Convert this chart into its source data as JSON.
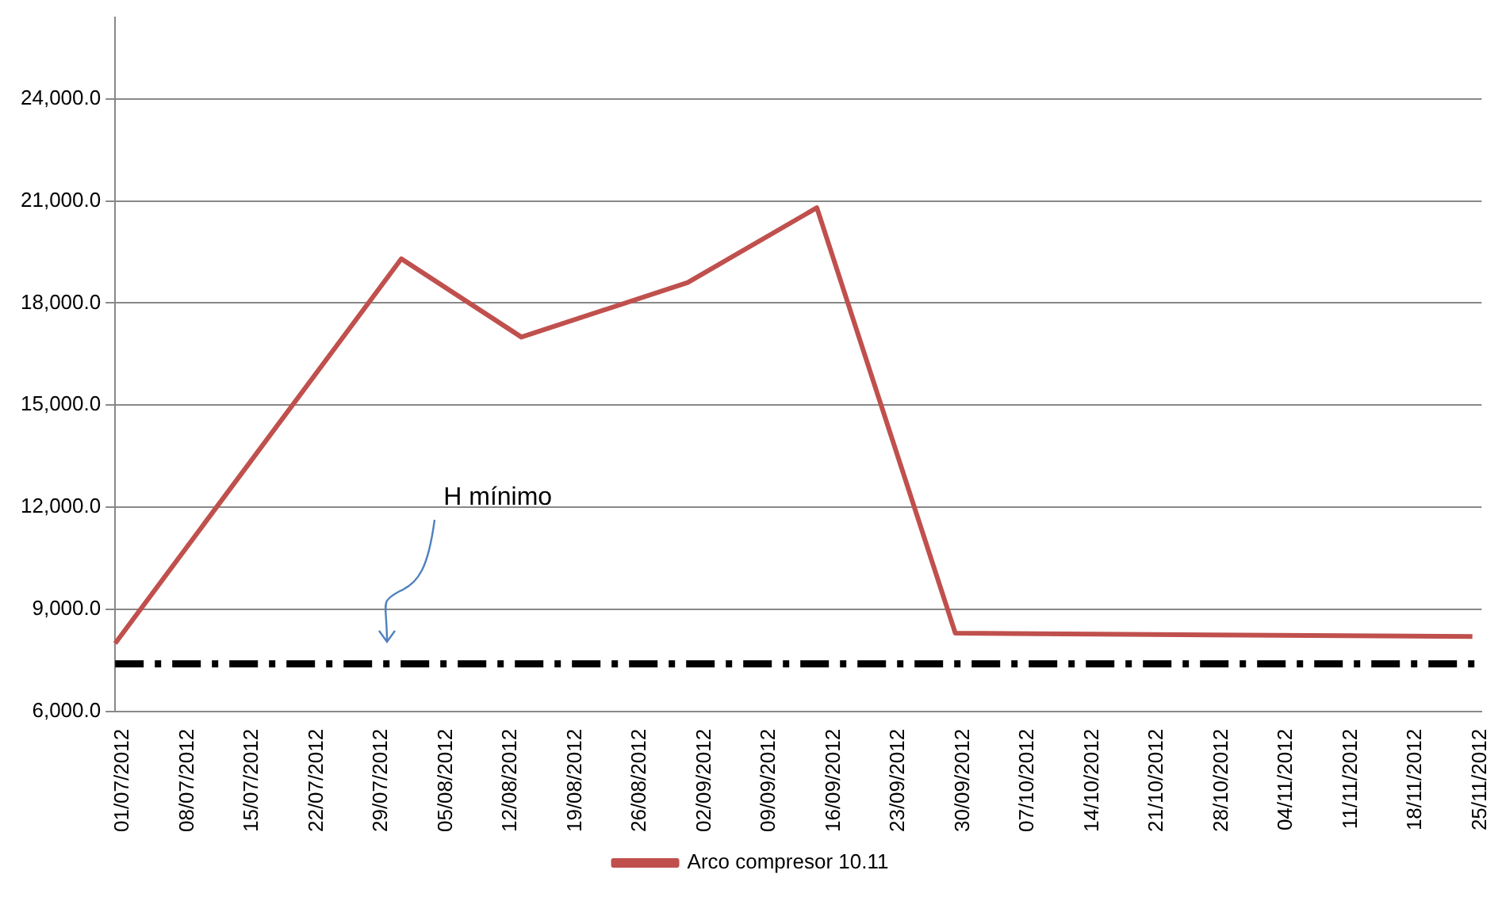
{
  "chart_data": {
    "type": "line",
    "x": [
      "2012-07-01",
      "2012-08-01",
      "2012-08-14",
      "2012-09-01",
      "2012-09-15",
      "2012-09-30",
      "2012-11-25"
    ],
    "series": [
      {
        "name": "Arco compresor 10.11",
        "color": "#c0504d",
        "values": [
          8000,
          19300,
          17000,
          18600,
          20800,
          8300,
          8200
        ]
      }
    ],
    "xlim": [
      "2012-07-01",
      "2012-11-26"
    ],
    "xticks": [
      {
        "value": "2012-07-01",
        "label": "01/07/2012"
      },
      {
        "value": "2012-07-08",
        "label": "08/07/2012"
      },
      {
        "value": "2012-07-15",
        "label": "15/07/2012"
      },
      {
        "value": "2012-07-22",
        "label": "22/07/2012"
      },
      {
        "value": "2012-07-29",
        "label": "29/07/2012"
      },
      {
        "value": "2012-08-05",
        "label": "05/08/2012"
      },
      {
        "value": "2012-08-12",
        "label": "12/08/2012"
      },
      {
        "value": "2012-08-19",
        "label": "19/08/2012"
      },
      {
        "value": "2012-08-26",
        "label": "26/08/2012"
      },
      {
        "value": "2012-09-02",
        "label": "02/09/2012"
      },
      {
        "value": "2012-09-09",
        "label": "09/09/2012"
      },
      {
        "value": "2012-09-16",
        "label": "16/09/2012"
      },
      {
        "value": "2012-09-23",
        "label": "23/09/2012"
      },
      {
        "value": "2012-09-30",
        "label": "30/09/2012"
      },
      {
        "value": "2012-10-07",
        "label": "07/10/2012"
      },
      {
        "value": "2012-10-14",
        "label": "14/10/2012"
      },
      {
        "value": "2012-10-21",
        "label": "21/10/2012"
      },
      {
        "value": "2012-10-28",
        "label": "28/10/2012"
      },
      {
        "value": "2012-11-04",
        "label": "04/11/2012"
      },
      {
        "value": "2012-11-11",
        "label": "11/11/2012"
      },
      {
        "value": "2012-11-18",
        "label": "18/11/2012"
      },
      {
        "value": "2012-11-25",
        "label": "25/11/2012"
      }
    ],
    "ylim": [
      6000,
      26400
    ],
    "yticks": [
      {
        "value": 6000,
        "label": "6,000.0"
      },
      {
        "value": 9000,
        "label": "9,000.0"
      },
      {
        "value": 12000,
        "label": "12,000.0"
      },
      {
        "value": 15000,
        "label": "15,000.0"
      },
      {
        "value": 18000,
        "label": "18,000.0"
      },
      {
        "value": 21000,
        "label": "21,000.0"
      },
      {
        "value": 24000,
        "label": "24,000.0"
      }
    ],
    "ref_lines": [
      {
        "axis": "y",
        "value": 7400,
        "label": "H mínimo",
        "color": "#000000",
        "line_style": "dashed"
      }
    ],
    "grid": "y",
    "legend": "bottom",
    "marker": "none",
    "line_style": "solid"
  }
}
